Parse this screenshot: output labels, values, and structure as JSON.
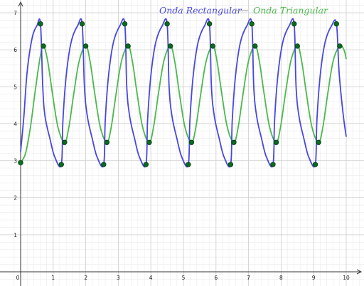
{
  "chart_data": {
    "type": "line",
    "title": "",
    "xlabel": "",
    "ylabel": "",
    "xlim": [
      0,
      10.6
    ],
    "ylim": [
      0,
      7.4
    ],
    "grid": true,
    "legend_position": "top",
    "x_ticks": [
      "0",
      "1",
      "2",
      "3",
      "4",
      "5",
      "6",
      "7",
      "8",
      "9",
      "10"
    ],
    "y_ticks": [
      "1",
      "2",
      "3",
      "4",
      "5",
      "6",
      "7"
    ],
    "series": [
      {
        "name": "Onda Rectangular",
        "color": "#4747e0",
        "marker_color": "#0b6b1e",
        "points": [
          [
            0.61,
            6.7
          ],
          [
            1.89,
            6.7
          ],
          [
            3.2,
            6.7
          ],
          [
            4.5,
            6.7
          ],
          [
            5.8,
            6.7
          ],
          [
            7.1,
            6.7
          ],
          [
            8.4,
            6.7
          ],
          [
            9.7,
            6.7
          ],
          [
            1.25,
            2.9
          ],
          [
            2.55,
            2.9
          ],
          [
            3.85,
            2.9
          ],
          [
            5.15,
            2.9
          ],
          [
            6.45,
            2.9
          ],
          [
            7.75,
            2.9
          ],
          [
            9.05,
            2.9
          ]
        ],
        "curve": [
          [
            0,
            3.25
          ],
          [
            0.1,
            4.2
          ],
          [
            0.2,
            5.4
          ],
          [
            0.35,
            6.3
          ],
          [
            0.5,
            6.65
          ],
          [
            0.61,
            6.7
          ],
          [
            0.68,
            5.0
          ],
          [
            0.75,
            4.2
          ],
          [
            0.9,
            3.6
          ],
          [
            1.05,
            3.1
          ],
          [
            1.25,
            2.9
          ],
          [
            1.3,
            4.1
          ],
          [
            1.4,
            5.3
          ],
          [
            1.55,
            6.2
          ],
          [
            1.75,
            6.65
          ],
          [
            1.89,
            6.7
          ],
          [
            1.96,
            5.0
          ],
          [
            2.05,
            4.2
          ],
          [
            2.2,
            3.6
          ],
          [
            2.35,
            3.1
          ],
          [
            2.55,
            2.9
          ],
          [
            2.6,
            4.1
          ],
          [
            2.7,
            5.3
          ],
          [
            2.85,
            6.2
          ],
          [
            3.05,
            6.65
          ],
          [
            3.2,
            6.7
          ],
          [
            3.26,
            5.0
          ],
          [
            3.35,
            4.2
          ],
          [
            3.5,
            3.6
          ],
          [
            3.65,
            3.1
          ],
          [
            3.85,
            2.9
          ],
          [
            3.9,
            4.1
          ],
          [
            4.0,
            5.3
          ],
          [
            4.15,
            6.2
          ],
          [
            4.35,
            6.65
          ],
          [
            4.5,
            6.7
          ],
          [
            4.56,
            5.0
          ],
          [
            4.65,
            4.2
          ],
          [
            4.8,
            3.6
          ],
          [
            4.95,
            3.1
          ],
          [
            5.15,
            2.9
          ],
          [
            5.2,
            4.1
          ],
          [
            5.3,
            5.3
          ],
          [
            5.45,
            6.2
          ],
          [
            5.65,
            6.65
          ],
          [
            5.8,
            6.7
          ],
          [
            5.86,
            5.0
          ],
          [
            5.95,
            4.2
          ],
          [
            6.1,
            3.6
          ],
          [
            6.25,
            3.1
          ],
          [
            6.45,
            2.9
          ],
          [
            6.5,
            4.1
          ],
          [
            6.6,
            5.3
          ],
          [
            6.75,
            6.2
          ],
          [
            6.95,
            6.65
          ],
          [
            7.1,
            6.7
          ],
          [
            7.16,
            5.0
          ],
          [
            7.25,
            4.2
          ],
          [
            7.4,
            3.6
          ],
          [
            7.55,
            3.1
          ],
          [
            7.75,
            2.9
          ],
          [
            7.8,
            4.1
          ],
          [
            7.9,
            5.3
          ],
          [
            8.05,
            6.2
          ],
          [
            8.25,
            6.65
          ],
          [
            8.4,
            6.7
          ],
          [
            8.46,
            5.0
          ],
          [
            8.55,
            4.2
          ],
          [
            8.7,
            3.6
          ],
          [
            8.85,
            3.1
          ],
          [
            9.05,
            2.9
          ],
          [
            9.1,
            4.1
          ],
          [
            9.2,
            5.3
          ],
          [
            9.35,
            6.2
          ],
          [
            9.55,
            6.65
          ],
          [
            9.7,
            6.7
          ],
          [
            9.78,
            5.4
          ],
          [
            9.9,
            4.3
          ],
          [
            10.0,
            3.65
          ]
        ]
      },
      {
        "name": "Onda Triangular",
        "color": "#4cb84c",
        "marker_color": "#0b6b1e",
        "points": [
          [
            0,
            2.95
          ],
          [
            0.7,
            6.1
          ],
          [
            1.35,
            3.5
          ],
          [
            2.0,
            6.1
          ],
          [
            2.65,
            3.5
          ],
          [
            3.3,
            6.1
          ],
          [
            3.95,
            3.5
          ],
          [
            4.6,
            6.1
          ],
          [
            5.25,
            3.5
          ],
          [
            5.9,
            6.1
          ],
          [
            6.55,
            3.5
          ],
          [
            7.2,
            6.1
          ],
          [
            7.85,
            3.5
          ],
          [
            8.5,
            6.1
          ],
          [
            9.15,
            3.5
          ],
          [
            9.8,
            6.1
          ]
        ],
        "curve": [
          [
            0,
            2.95
          ],
          [
            0.15,
            3.2
          ],
          [
            0.3,
            3.9
          ],
          [
            0.45,
            4.9
          ],
          [
            0.6,
            5.8
          ],
          [
            0.7,
            6.1
          ],
          [
            0.83,
            5.7
          ],
          [
            0.98,
            4.8
          ],
          [
            1.15,
            3.9
          ],
          [
            1.35,
            3.5
          ],
          [
            1.48,
            3.9
          ],
          [
            1.63,
            4.8
          ],
          [
            1.8,
            5.7
          ],
          [
            2.0,
            6.1
          ],
          [
            2.13,
            5.7
          ],
          [
            2.28,
            4.8
          ],
          [
            2.45,
            3.9
          ],
          [
            2.65,
            3.5
          ],
          [
            2.78,
            3.9
          ],
          [
            2.93,
            4.8
          ],
          [
            3.1,
            5.7
          ],
          [
            3.3,
            6.1
          ],
          [
            3.43,
            5.7
          ],
          [
            3.58,
            4.8
          ],
          [
            3.75,
            3.9
          ],
          [
            3.95,
            3.5
          ],
          [
            4.08,
            3.9
          ],
          [
            4.23,
            4.8
          ],
          [
            4.4,
            5.7
          ],
          [
            4.6,
            6.1
          ],
          [
            4.73,
            5.7
          ],
          [
            4.88,
            4.8
          ],
          [
            5.05,
            3.9
          ],
          [
            5.25,
            3.5
          ],
          [
            5.38,
            3.9
          ],
          [
            5.53,
            4.8
          ],
          [
            5.7,
            5.7
          ],
          [
            5.9,
            6.1
          ],
          [
            6.03,
            5.7
          ],
          [
            6.18,
            4.8
          ],
          [
            6.35,
            3.9
          ],
          [
            6.55,
            3.5
          ],
          [
            6.68,
            3.9
          ],
          [
            6.83,
            4.8
          ],
          [
            7.0,
            5.7
          ],
          [
            7.2,
            6.1
          ],
          [
            7.33,
            5.7
          ],
          [
            7.48,
            4.8
          ],
          [
            7.65,
            3.9
          ],
          [
            7.85,
            3.5
          ],
          [
            7.98,
            3.9
          ],
          [
            8.13,
            4.8
          ],
          [
            8.3,
            5.7
          ],
          [
            8.5,
            6.1
          ],
          [
            8.63,
            5.7
          ],
          [
            8.78,
            4.8
          ],
          [
            8.95,
            3.9
          ],
          [
            9.15,
            3.5
          ],
          [
            9.28,
            3.9
          ],
          [
            9.43,
            4.8
          ],
          [
            9.6,
            5.7
          ],
          [
            9.8,
            6.1
          ],
          [
            9.93,
            6.0
          ],
          [
            10.0,
            5.75
          ]
        ]
      }
    ]
  }
}
